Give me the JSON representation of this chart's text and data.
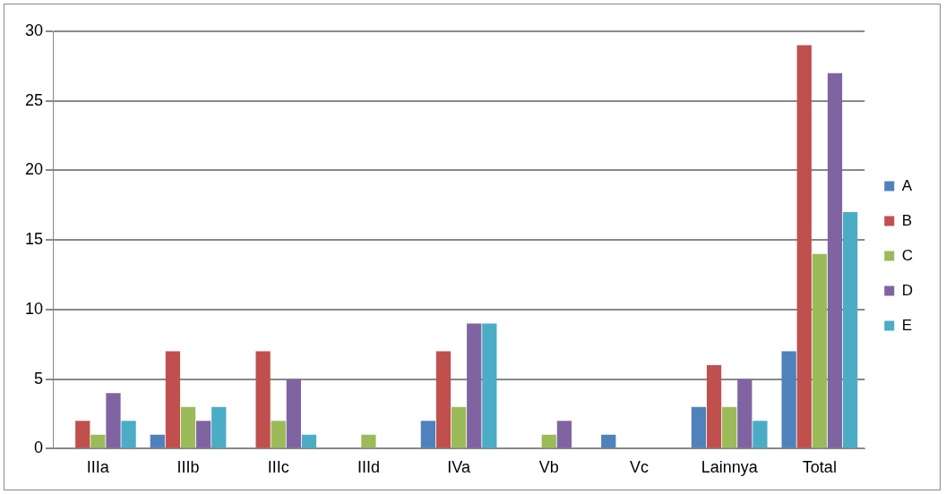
{
  "chart_data": {
    "type": "bar",
    "categories": [
      "IIIa",
      "IIIb",
      "IIIc",
      "IIId",
      "IVa",
      "Vb",
      "Vc",
      "Lainnya",
      "Total"
    ],
    "series": [
      {
        "name": "A",
        "color": "#4f81bd",
        "values": [
          0,
          1,
          0,
          0,
          2,
          0,
          1,
          3,
          7
        ]
      },
      {
        "name": "B",
        "color": "#c0504d",
        "values": [
          2,
          7,
          7,
          0,
          7,
          0,
          0,
          6,
          29
        ]
      },
      {
        "name": "C",
        "color": "#9bbb59",
        "values": [
          1,
          3,
          2,
          1,
          3,
          1,
          0,
          3,
          14
        ]
      },
      {
        "name": "D",
        "color": "#8064a2",
        "values": [
          4,
          2,
          5,
          0,
          9,
          2,
          0,
          5,
          27
        ]
      },
      {
        "name": "E",
        "color": "#4bacc6",
        "values": [
          2,
          3,
          1,
          0,
          9,
          0,
          0,
          2,
          17
        ]
      }
    ],
    "ylim": [
      0,
      30
    ],
    "yticks": [
      0,
      5,
      10,
      15,
      20,
      25,
      30
    ],
    "grid": "y",
    "legend": "right"
  }
}
